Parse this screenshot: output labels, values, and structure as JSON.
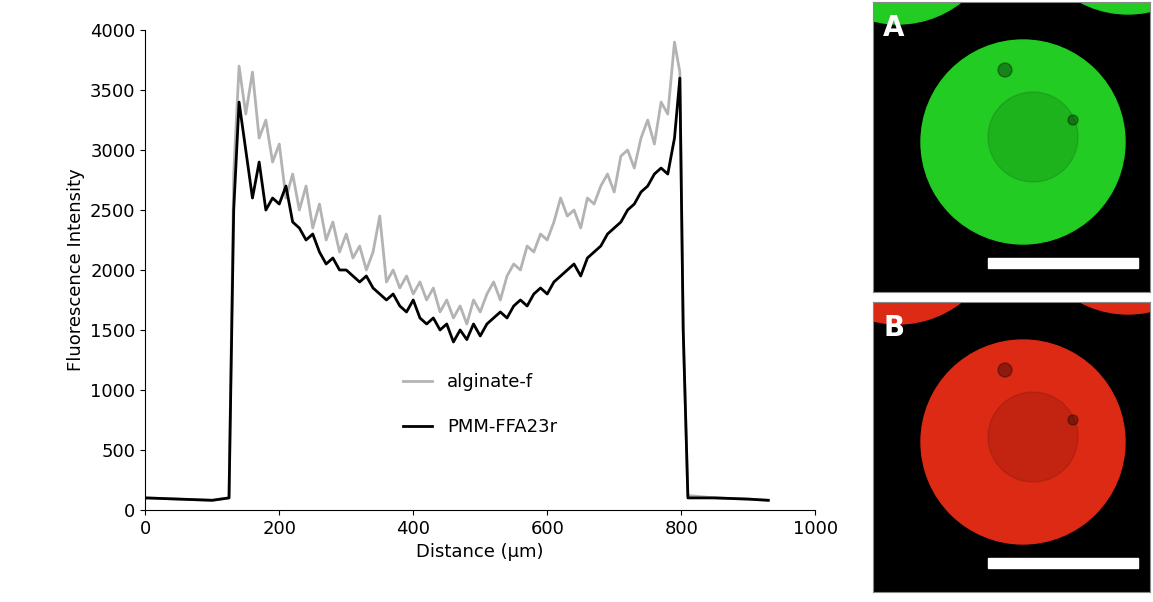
{
  "chart_data": {
    "type": "line",
    "xlabel": "Distance (µm)",
    "ylabel": "Fluorescence Intensity",
    "x": [
      0,
      50,
      100,
      125,
      132,
      140,
      150,
      160,
      170,
      180,
      190,
      200,
      210,
      220,
      230,
      240,
      250,
      260,
      270,
      280,
      290,
      300,
      310,
      320,
      330,
      340,
      350,
      360,
      370,
      380,
      390,
      400,
      410,
      420,
      430,
      440,
      450,
      460,
      470,
      480,
      490,
      500,
      510,
      520,
      530,
      540,
      550,
      560,
      570,
      580,
      590,
      600,
      610,
      620,
      630,
      640,
      650,
      660,
      670,
      680,
      690,
      700,
      710,
      720,
      730,
      740,
      750,
      760,
      770,
      780,
      790,
      798,
      803,
      810,
      850,
      900,
      930
    ],
    "series": [
      {
        "name": "alginate-f",
        "color": "#b3b3b3",
        "values": [
          100,
          90,
          80,
          100,
          2800,
          3700,
          3300,
          3650,
          3100,
          3250,
          2900,
          3050,
          2600,
          2800,
          2500,
          2700,
          2350,
          2550,
          2250,
          2400,
          2150,
          2300,
          2100,
          2200,
          2000,
          2150,
          2450,
          1900,
          2000,
          1850,
          1950,
          1800,
          1900,
          1750,
          1850,
          1650,
          1750,
          1600,
          1700,
          1550,
          1750,
          1650,
          1800,
          1900,
          1750,
          1950,
          2050,
          2000,
          2200,
          2150,
          2300,
          2250,
          2400,
          2600,
          2450,
          2500,
          2350,
          2600,
          2550,
          2700,
          2800,
          2650,
          2950,
          3000,
          2850,
          3100,
          3250,
          3050,
          3400,
          3300,
          3900,
          3650,
          1500,
          120,
          100,
          90,
          80
        ]
      },
      {
        "name": "PMM-FFA23r",
        "color": "#000000",
        "values": [
          100,
          90,
          80,
          100,
          2500,
          3400,
          3000,
          2600,
          2900,
          2500,
          2600,
          2550,
          2700,
          2400,
          2350,
          2250,
          2300,
          2150,
          2050,
          2100,
          2000,
          2000,
          1950,
          1900,
          1950,
          1850,
          1800,
          1750,
          1800,
          1700,
          1650,
          1750,
          1600,
          1550,
          1600,
          1500,
          1550,
          1400,
          1500,
          1420,
          1550,
          1450,
          1550,
          1600,
          1650,
          1600,
          1700,
          1750,
          1700,
          1800,
          1850,
          1800,
          1900,
          1950,
          2000,
          2050,
          1950,
          2100,
          2150,
          2200,
          2300,
          2350,
          2400,
          2500,
          2550,
          2650,
          2700,
          2800,
          2850,
          2800,
          3100,
          3600,
          1500,
          100,
          100,
          90,
          80
        ]
      }
    ],
    "xlim": [
      0,
      1000
    ],
    "xticks": [
      0,
      200,
      400,
      600,
      800,
      1000
    ],
    "ylim": [
      0,
      4000
    ],
    "yticks": [
      0,
      500,
      1000,
      1500,
      2000,
      2500,
      3000,
      3500,
      4000
    ],
    "grid": false,
    "legend": "lower center"
  },
  "panels": [
    {
      "label": "A",
      "color": "#22cc22"
    },
    {
      "label": "B",
      "color": "#dd2a14"
    }
  ]
}
